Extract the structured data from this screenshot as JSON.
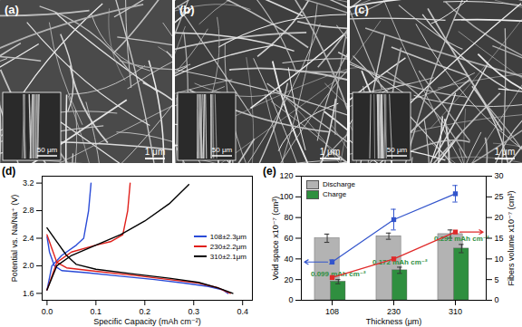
{
  "images": [
    {
      "label": "(a)",
      "scale_bar": "1 μm",
      "inset_scale_bar": "50 μm"
    },
    {
      "label": "(b)",
      "scale_bar": "1 μm",
      "inset_scale_bar": "50 μm"
    },
    {
      "label": "(c)",
      "scale_bar": "1 μm",
      "inset_scale_bar": "50 μm"
    }
  ],
  "chart_data": [
    {
      "type": "line",
      "title": "(d)",
      "xlabel": "Specific Capacity (mAh cm⁻²)",
      "ylabel": "Potential vs. Na/Na⁺ (V)",
      "xlim": [
        -0.01,
        0.42
      ],
      "xticks": [
        {
          "value": 0,
          "label": "0.0"
        },
        0.1,
        0.2,
        0.3,
        0.4
      ],
      "ylim": [
        1.5,
        3.3
      ],
      "yticks": [
        1.6,
        {
          "value": 2,
          "label": "2.0"
        },
        2.4,
        2.8,
        3.2
      ],
      "legend": "center right",
      "series": [
        {
          "name": "108±2.3μm",
          "color": "#2a4bd7",
          "x": [
            0,
            0.005,
            0.015,
            0.03,
            0.08,
            0.15,
            0.22,
            0.28,
            0.33,
            0.36,
            0.37,
            null,
            0,
            0.01,
            0.03,
            0.06,
            0.075,
            0.085,
            0.09
          ],
          "values": [
            2.42,
            2.2,
            2.0,
            1.93,
            1.9,
            1.85,
            1.8,
            1.75,
            1.7,
            1.65,
            1.6,
            null,
            1.65,
            2.0,
            2.15,
            2.3,
            2.4,
            2.8,
            3.2
          ]
        },
        {
          "name": "230±2.2μm",
          "color": "#e0201b",
          "x": [
            0,
            0.01,
            0.02,
            0.04,
            0.1,
            0.18,
            0.25,
            0.31,
            0.35,
            0.375,
            null,
            0,
            0.02,
            0.05,
            0.1,
            0.13,
            0.155,
            0.165,
            0.17
          ],
          "values": [
            2.45,
            2.25,
            2.05,
            1.97,
            1.92,
            1.86,
            1.8,
            1.75,
            1.68,
            1.6,
            null,
            1.65,
            2.05,
            2.2,
            2.3,
            2.35,
            2.45,
            2.8,
            3.2
          ]
        },
        {
          "name": "310±2.1μm",
          "color": "#000000",
          "x": [
            0,
            0.02,
            0.04,
            0.06,
            0.1,
            0.18,
            0.25,
            0.31,
            0.35,
            0.38,
            null,
            0,
            0.02,
            0.05,
            0.1,
            0.15,
            0.2,
            0.25,
            0.29
          ],
          "values": [
            2.55,
            2.35,
            2.15,
            2.02,
            1.95,
            1.88,
            1.82,
            1.76,
            1.68,
            1.6,
            null,
            1.65,
            2.0,
            2.15,
            2.3,
            2.45,
            2.65,
            2.9,
            3.18
          ]
        }
      ]
    },
    {
      "type": "bar",
      "title": "(e)",
      "xlabel": "Thickness (μm)",
      "ylabel": "Void space x10⁻⁷ (cm³)",
      "y2label": "Fibers volume x10⁻⁷ (cm³)",
      "categories": [
        "108",
        "230",
        "310"
      ],
      "ylim": [
        0,
        120
      ],
      "yticks": [
        0,
        20,
        40,
        60,
        80,
        100,
        120
      ],
      "y2lim": [
        0,
        30
      ],
      "y2ticks": [
        0,
        5,
        10,
        15,
        20,
        25,
        30
      ],
      "legend": "upper left",
      "series": [
        {
          "name": "Discharge",
          "type": "bar",
          "color": "#b3b3b3",
          "values": [
            60,
            62,
            64
          ],
          "errors": [
            4,
            3,
            4
          ]
        },
        {
          "name": "Charge",
          "type": "bar",
          "color": "#2f8f3f",
          "values": [
            18,
            29,
            50
          ],
          "errors": [
            2,
            3,
            4
          ]
        },
        {
          "type": "line",
          "color": "#3355cc",
          "marker": "square",
          "values": [
            37,
            78,
            103
          ],
          "errors": [
            2,
            10,
            8
          ]
        },
        {
          "type": "line",
          "axis": "y2",
          "color": "#e02a2a",
          "marker": "square",
          "values": [
            5.5,
            10,
            16.5
          ]
        }
      ],
      "annotations": [
        {
          "text": "0.099 mAh cm⁻²",
          "category": "108",
          "series": "Charge",
          "color": "#2f8f3f"
        },
        {
          "text": "0.172 mAh cm⁻²",
          "category": "230",
          "series": "Charge",
          "color": "#2f8f3f"
        },
        {
          "text": "0.291 mAh cm⁻²",
          "category": "310",
          "series": "Charge",
          "color": "#2f8f3f"
        }
      ]
    }
  ]
}
